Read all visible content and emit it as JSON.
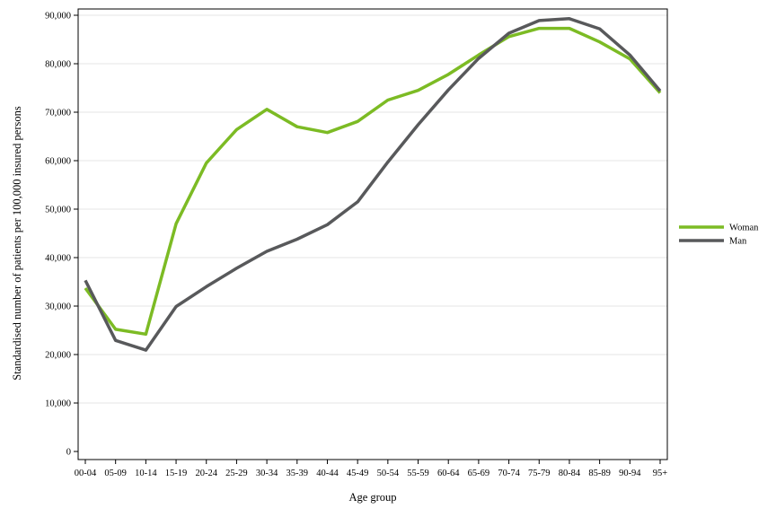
{
  "chart_data": {
    "type": "line",
    "xlabel": "Age group",
    "ylabel": "Standardised number of patients per 100,000 insured persons",
    "ylim": [
      0,
      90000
    ],
    "yticks": [
      0,
      10000,
      20000,
      30000,
      40000,
      50000,
      60000,
      70000,
      80000,
      90000
    ],
    "ytick_labels": [
      "0",
      "10,000",
      "20,000",
      "30,000",
      "40,000",
      "50,000",
      "60,000",
      "70,000",
      "80,000",
      "90,000"
    ],
    "grid": "horizontal",
    "legend_position": "right",
    "categories": [
      "00-04",
      "05-09",
      "10-14",
      "15-19",
      "20-24",
      "25-29",
      "30-34",
      "35-39",
      "40-44",
      "45-49",
      "50-54",
      "55-59",
      "60-64",
      "65-69",
      "70-74",
      "75-79",
      "80-84",
      "85-89",
      "90-94",
      "95+"
    ],
    "series": [
      {
        "name": "Woman",
        "color": "#7cbb24",
        "values": [
          33700,
          25200,
          24200,
          47000,
          59500,
          66400,
          70600,
          67000,
          65800,
          68100,
          72500,
          74500,
          77800,
          81800,
          85600,
          87300,
          87300,
          84500,
          81000,
          74000
        ]
      },
      {
        "name": "Man",
        "color": "#58595b",
        "values": [
          35300,
          22900,
          20900,
          29900,
          34000,
          37800,
          41300,
          43800,
          46800,
          51500,
          59700,
          67400,
          74600,
          81100,
          86300,
          88900,
          89300,
          87200,
          81800,
          74400
        ]
      }
    ]
  }
}
